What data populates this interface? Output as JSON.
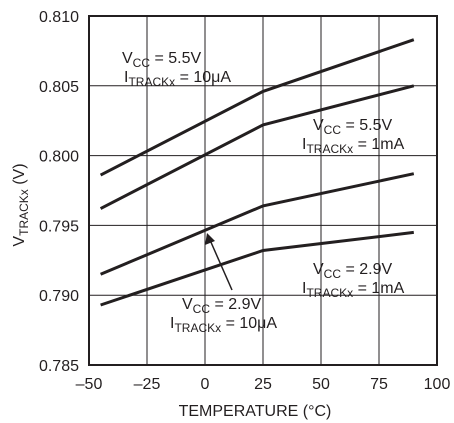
{
  "chart_data": {
    "type": "line",
    "xlabel": "TEMPERATURE (°C)",
    "ylabel": {
      "base": "V",
      "sub": "TRACKx",
      "suffix": " (V)"
    },
    "xlim": [
      -50,
      100
    ],
    "ylim": [
      0.785,
      0.81
    ],
    "x_ticks": [
      -50,
      -25,
      0,
      25,
      50,
      75,
      100
    ],
    "x_tick_labels": [
      "–50",
      "–25",
      "0",
      "25",
      "50",
      "75",
      "100"
    ],
    "y_ticks": [
      0.785,
      0.79,
      0.795,
      0.8,
      0.805,
      0.81
    ],
    "y_tick_labels": [
      "0.785",
      "0.790",
      "0.795",
      "0.800",
      "0.805",
      "0.810"
    ],
    "grid": true,
    "line_color": "#231f20",
    "grid_color": "#231f20",
    "series": [
      {
        "x": [
          -45,
          25,
          90
        ],
        "y": [
          0.7986,
          0.8046,
          0.8083
        ]
      },
      {
        "x": [
          -45,
          25,
          90
        ],
        "y": [
          0.7962,
          0.8022,
          0.805
        ]
      },
      {
        "x": [
          -45,
          25,
          90
        ],
        "y": [
          0.7915,
          0.7964,
          0.7987
        ]
      },
      {
        "x": [
          -45,
          25,
          90
        ],
        "y": [
          0.7893,
          0.7932,
          0.7945
        ]
      }
    ],
    "annotations": [
      {
        "vcc_base": "V",
        "vcc_sub": "CC",
        "vcc_value": " = 5.5V",
        "i_base": "I",
        "i_sub": "TRACKx",
        "i_value": " = 10μA"
      },
      {
        "vcc_base": "V",
        "vcc_sub": "CC",
        "vcc_value": " = 5.5V",
        "i_base": "I",
        "i_sub": "TRACKx",
        "i_value": " = 1mA"
      },
      {
        "vcc_base": "V",
        "vcc_sub": "CC",
        "vcc_value": " = 2.9V",
        "i_base": "I",
        "i_sub": "TRACKx",
        "i_value": " = 1mA"
      },
      {
        "vcc_base": "V",
        "vcc_sub": "CC",
        "vcc_value": " = 2.9V",
        "i_base": "I",
        "i_sub": "TRACKx",
        "i_value": " = 10μA"
      }
    ]
  }
}
